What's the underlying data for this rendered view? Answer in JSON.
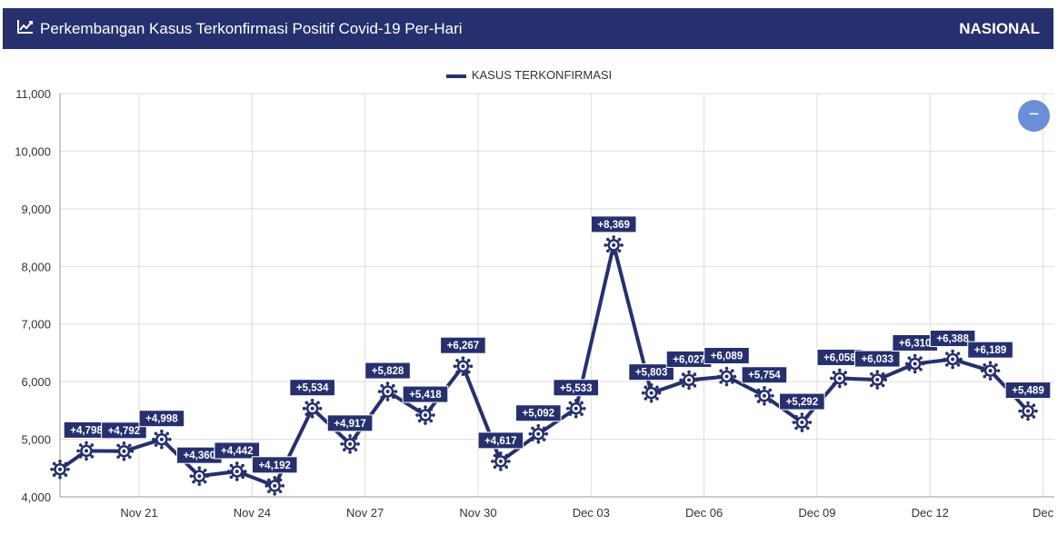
{
  "header": {
    "title": "Perkembangan Kasus Terkonfirmasi Positif Covid-19 Per-Hari",
    "region": "NASIONAL",
    "icon": "line-chart-icon"
  },
  "legend": {
    "label": "KASUS TERKONFIRMASI"
  },
  "zoom_button": {
    "label": "−",
    "icon": "zoom-out-icon"
  },
  "colors": {
    "primary": "#26306e",
    "grid": "#dddddd",
    "zoom": "#6a8fd6"
  },
  "chart_data": {
    "type": "line",
    "title": "Perkembangan Kasus Terkonfirmasi Positif Covid-19 Per-Hari",
    "xlabel": "",
    "ylabel": "",
    "ylim": [
      4000,
      11000
    ],
    "yticks": [
      "4,000",
      "5,000",
      "6,000",
      "7,000",
      "8,000",
      "9,000",
      "10,000",
      "11,000"
    ],
    "ytick_values": [
      4000,
      5000,
      6000,
      7000,
      8000,
      9000,
      10000,
      11000
    ],
    "xticks": [
      "Nov 21",
      "Nov 24",
      "Nov 27",
      "Nov 30",
      "Dec 03",
      "Dec 06",
      "Dec 09",
      "Dec 12",
      "Dec"
    ],
    "xtick_days": [
      21,
      24,
      27,
      30,
      33,
      36,
      39,
      42,
      45
    ],
    "x_range_days": [
      18.9,
      45.3
    ],
    "grid": true,
    "legend_position": "top-center",
    "series": [
      {
        "name": "KASUS TERKONFIRMASI",
        "days": [
          18.9,
          19.6,
          20.6,
          21.6,
          22.6,
          23.6,
          24.6,
          25.6,
          26.6,
          27.6,
          28.6,
          29.6,
          30.6,
          31.6,
          32.6,
          33.6,
          34.6,
          35.6,
          36.6,
          37.6,
          38.6,
          39.6,
          40.6,
          41.6,
          42.6,
          43.6,
          44.6
        ],
        "dates": [
          "Nov 18",
          "Nov 19",
          "Nov 20",
          "Nov 21",
          "Nov 22",
          "Nov 23",
          "Nov 24",
          "Nov 25",
          "Nov 26",
          "Nov 27",
          "Nov 28",
          "Nov 29",
          "Nov 30",
          "Dec 01",
          "Dec 02",
          "Dec 03",
          "Dec 04",
          "Dec 05",
          "Dec 06",
          "Dec 07",
          "Dec 08",
          "Dec 09",
          "Dec 10",
          "Dec 11",
          "Dec 12",
          "Dec 13",
          "Dec 14"
        ],
        "values": [
          4477,
          4798,
          4792,
          4998,
          4360,
          4442,
          4192,
          5534,
          4917,
          5828,
          5418,
          6267,
          4617,
          5092,
          5533,
          8369,
          5803,
          6027,
          6089,
          5754,
          5292,
          6058,
          6033,
          6310,
          6388,
          6189,
          5489
        ],
        "labels": [
          "",
          "+4,798",
          "+4,792",
          "+4,998",
          "+4,360",
          "+4,442",
          "+4,192",
          "+5,534",
          "+4,917",
          "+5,828",
          "+5,418",
          "+6,267",
          "+4,617",
          "+5,092",
          "+5,533",
          "+8,369",
          "+5,803",
          "+6,027",
          "+6,089",
          "+5,754",
          "+5,292",
          "+6,058",
          "+6,033",
          "+6,310",
          "+6,388",
          "+6,189",
          "+5,489"
        ]
      }
    ]
  }
}
